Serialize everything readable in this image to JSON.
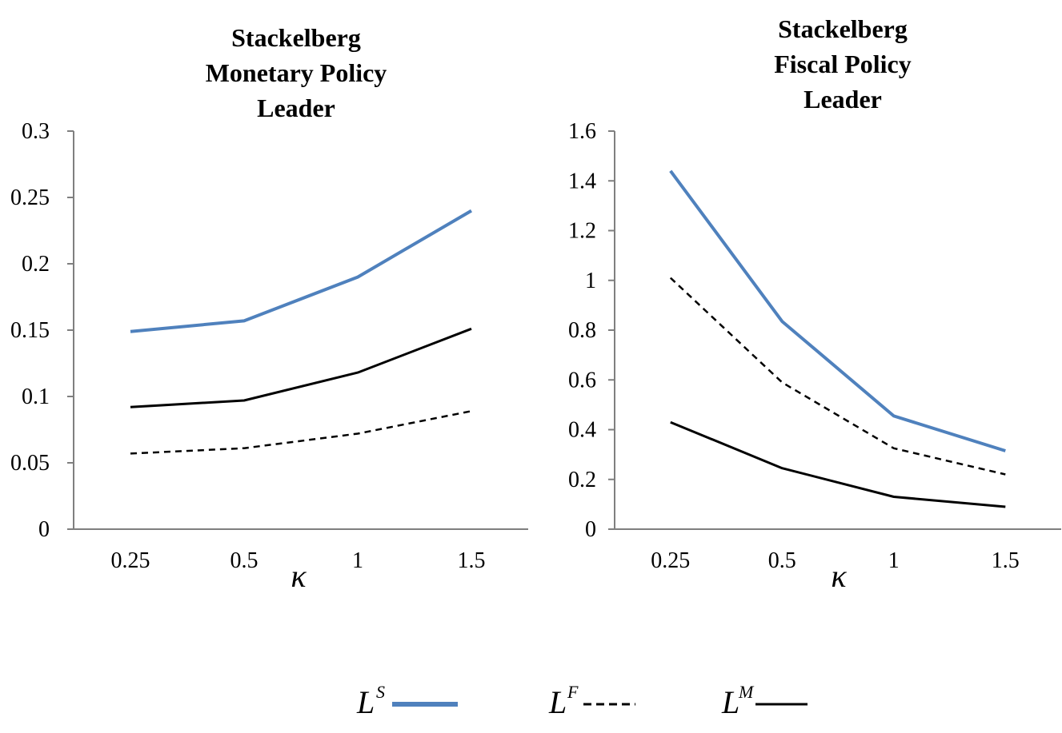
{
  "chart_data": [
    {
      "type": "line",
      "title_lines": [
        "Stackelberg",
        "Monetary Policy",
        "Leader"
      ],
      "xlabel": "κ",
      "ylabel": "",
      "categories": [
        "0.25",
        "0.5",
        "1",
        "1.5"
      ],
      "ylim": [
        0,
        0.3
      ],
      "yticks": [
        "0",
        "0.05",
        "0.1",
        "0.15",
        "0.2",
        "0.25",
        "0.3"
      ],
      "series": [
        {
          "name": "L^S",
          "values": [
            0.149,
            0.157,
            0.19,
            0.24
          ]
        },
        {
          "name": "L^F",
          "values": [
            0.057,
            0.061,
            0.072,
            0.089
          ]
        },
        {
          "name": "L^M",
          "values": [
            0.092,
            0.097,
            0.118,
            0.151
          ]
        }
      ]
    },
    {
      "type": "line",
      "title_lines": [
        "Stackelberg",
        "Fiscal Policy",
        "Leader"
      ],
      "xlabel": "κ",
      "ylabel": "",
      "categories": [
        "0.25",
        "0.5",
        "1",
        "1.5"
      ],
      "ylim": [
        0,
        1.6
      ],
      "yticks": [
        "0",
        "0.2",
        "0.4",
        "0.6",
        "0.8",
        "1",
        "1.2",
        "1.4",
        "1.6"
      ],
      "series": [
        {
          "name": "L^S",
          "values": [
            1.44,
            0.835,
            0.455,
            0.315
          ]
        },
        {
          "name": "L^F",
          "values": [
            1.01,
            0.59,
            0.325,
            0.22
          ]
        },
        {
          "name": "L^M",
          "values": [
            0.43,
            0.245,
            0.13,
            0.09
          ]
        }
      ]
    }
  ],
  "legend": {
    "items": [
      {
        "base": "L",
        "sup": "S",
        "style": "solid-blue"
      },
      {
        "base": "L",
        "sup": "F",
        "style": "dashed-black"
      },
      {
        "base": "L",
        "sup": "M",
        "style": "solid-black"
      }
    ]
  },
  "colors": {
    "series_s": "#4f81bd",
    "series_f": "#000000",
    "series_m": "#000000",
    "axis": "#7f7f7f"
  }
}
